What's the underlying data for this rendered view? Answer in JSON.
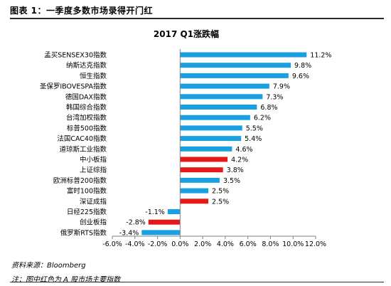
{
  "figure": {
    "header": "图表 1：一季度多数市场录得开门红",
    "source": "资料来源：Bloomberg",
    "note": "注：图中红色为 A 股市场主要指数"
  },
  "colors": {
    "blue": "#1aa0e0",
    "red": "#e61919",
    "axis": "#808080"
  },
  "chart_data": {
    "type": "bar",
    "orientation": "horizontal",
    "title": "2017 Q1涨跌幅",
    "categories": [
      "孟买SENSEX30指数",
      "纳斯达克指数",
      "恒生指数",
      "圣保罗IBOVESPA指数",
      "德国DAX指数",
      "韩国综合指数",
      "台湾加权指数",
      "标普500指数",
      "法国CAC40指数",
      "道琼斯工业指数",
      "中小板指",
      "上证综指",
      "欧洲标普200指数",
      "富时100指数",
      "深证成指",
      "日经225指数",
      "创业板指",
      "俄罗斯RTS指数"
    ],
    "values": [
      11.2,
      9.8,
      9.6,
      7.9,
      7.3,
      6.8,
      6.2,
      5.5,
      5.4,
      4.6,
      4.2,
      3.8,
      3.5,
      2.5,
      2.5,
      -1.1,
      -2.8,
      -3.4
    ],
    "value_labels": [
      "11.2%",
      "9.8%",
      "9.6%",
      "7.9%",
      "7.3%",
      "6.8%",
      "6.2%",
      "5.5%",
      "5.4%",
      "4.6%",
      "4.2%",
      "3.8%",
      "3.5%",
      "2.5%",
      "2.5%",
      "-1.1%",
      "-2.8%",
      "-3.4%"
    ],
    "highlight": [
      false,
      false,
      false,
      false,
      false,
      false,
      false,
      false,
      false,
      false,
      true,
      true,
      false,
      false,
      true,
      false,
      true,
      false
    ],
    "xlim": [
      -6,
      12
    ],
    "xticks": [
      -6,
      -4,
      -2,
      0,
      2,
      4,
      6,
      8,
      10,
      12
    ],
    "xtick_labels": [
      "-6.0%",
      "-4.0%",
      "-2.0%",
      "0.0%",
      "2.0%",
      "4.0%",
      "6.0%",
      "8.0%",
      "10.0%",
      "12.0%"
    ],
    "grid": false,
    "legend": "none"
  }
}
